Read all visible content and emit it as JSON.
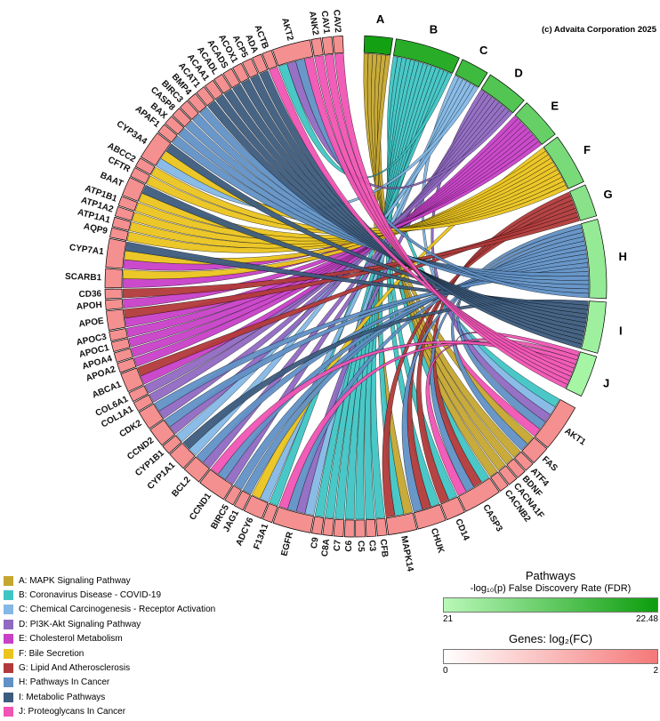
{
  "copyright": "(c) Advaita Corporation 2025",
  "chart_data": {
    "type": "chord",
    "title": "Pathways-Genes chord diagram",
    "gene_arc_color": "#F59090",
    "pathways": [
      {
        "letter": "A",
        "name": "MAPK Signaling Pathway",
        "color": "#C5A730",
        "arc_color": "#13A013"
      },
      {
        "letter": "B",
        "name": "Coronavirus Disease - COVID-19",
        "color": "#40C5C5",
        "arc_color": "#29AD29"
      },
      {
        "letter": "C",
        "name": "Chemical Carcinogenesis - Receptor Activation",
        "color": "#84B8E6",
        "arc_color": "#3EBA3E"
      },
      {
        "letter": "D",
        "name": "PI3K-Akt Signaling Pathway",
        "color": "#9069C2",
        "arc_color": "#53C553"
      },
      {
        "letter": "E",
        "name": "Cholesterol Metabolism",
        "color": "#C840C8",
        "arc_color": "#66D066"
      },
      {
        "letter": "F",
        "name": "Bile Secretion",
        "color": "#EBC41E",
        "arc_color": "#79DA79"
      },
      {
        "letter": "G",
        "name": "Lipid And Atherosclerosis",
        "color": "#B23A3A",
        "arc_color": "#89E289"
      },
      {
        "letter": "H",
        "name": "Pathways In Cancer",
        "color": "#6191C6",
        "arc_color": "#95EA95"
      },
      {
        "letter": "I",
        "name": "Metabolic Pathways",
        "color": "#3D5C7E",
        "arc_color": "#9EF09E"
      },
      {
        "letter": "J",
        "name": "Proteoglycans In Cancer",
        "color": "#F054B4",
        "arc_color": "#A5F5A5"
      }
    ],
    "genes": [
      {
        "name": "AKT1",
        "links": [
          "B",
          "C",
          "D",
          "H",
          "J"
        ]
      },
      {
        "name": "FAS",
        "links": [
          "A",
          "H"
        ]
      },
      {
        "name": "ATF4",
        "links": [
          "A"
        ]
      },
      {
        "name": "BDNF",
        "links": [
          "A"
        ]
      },
      {
        "name": "CACNA1F",
        "links": [
          "A"
        ]
      },
      {
        "name": "CACNB2",
        "links": [
          "A"
        ]
      },
      {
        "name": "CASP3",
        "links": [
          "B",
          "G",
          "H",
          "J"
        ]
      },
      {
        "name": "CD14",
        "links": [
          "B",
          "G"
        ]
      },
      {
        "name": "CHUK",
        "links": [
          "B",
          "G",
          "H"
        ]
      },
      {
        "name": "MAPK14",
        "links": [
          "A",
          "B",
          "G"
        ]
      },
      {
        "name": "CFB",
        "links": [
          "B"
        ]
      },
      {
        "name": "C3",
        "links": [
          "B"
        ]
      },
      {
        "name": "C5",
        "links": [
          "B"
        ]
      },
      {
        "name": "C6",
        "links": [
          "B"
        ]
      },
      {
        "name": "C7",
        "links": [
          "B"
        ]
      },
      {
        "name": "C8A",
        "links": [
          "B"
        ]
      },
      {
        "name": "C9",
        "links": [
          "B"
        ]
      },
      {
        "name": "EGFR",
        "links": [
          "C",
          "D",
          "H",
          "J"
        ]
      },
      {
        "name": "F13A1",
        "links": [
          "B"
        ]
      },
      {
        "name": "ADCY6",
        "links": [
          "C",
          "F"
        ]
      },
      {
        "name": "JAG1",
        "links": [
          "H"
        ]
      },
      {
        "name": "BIRC5",
        "links": [
          "H"
        ]
      },
      {
        "name": "CCND1",
        "links": [
          "D",
          "H",
          "J"
        ]
      },
      {
        "name": "BCL2",
        "links": [
          "D",
          "H"
        ]
      },
      {
        "name": "CYP1A1",
        "links": [
          "C",
          "I"
        ]
      },
      {
        "name": "CYP1B1",
        "links": [
          "C"
        ]
      },
      {
        "name": "CCND2",
        "links": [
          "D",
          "H"
        ]
      },
      {
        "name": "CDK2",
        "links": [
          "D",
          "H"
        ]
      },
      {
        "name": "COL1A1",
        "links": [
          "D"
        ]
      },
      {
        "name": "COL6A1",
        "links": [
          "D"
        ]
      },
      {
        "name": "ABCA1",
        "links": [
          "E",
          "G"
        ]
      },
      {
        "name": "APOA2",
        "links": [
          "E"
        ]
      },
      {
        "name": "APOA4",
        "links": [
          "E"
        ]
      },
      {
        "name": "APOC1",
        "links": [
          "E"
        ]
      },
      {
        "name": "APOC3",
        "links": [
          "E"
        ]
      },
      {
        "name": "APOE",
        "links": [
          "E",
          "G"
        ]
      },
      {
        "name": "APOH",
        "links": [
          "E"
        ]
      },
      {
        "name": "CD36",
        "links": [
          "G"
        ]
      },
      {
        "name": "SCARB1",
        "links": [
          "E",
          "F"
        ]
      },
      {
        "name": "CYP7A1",
        "links": [
          "E",
          "F",
          "I"
        ]
      },
      {
        "name": "AQP9",
        "links": [
          "F"
        ]
      },
      {
        "name": "ATP1A1",
        "links": [
          "F"
        ]
      },
      {
        "name": "ATP1A2",
        "links": [
          "F"
        ]
      },
      {
        "name": "ATP1B1",
        "links": [
          "F"
        ]
      },
      {
        "name": "BAAT",
        "links": [
          "F",
          "I"
        ]
      },
      {
        "name": "CFTR",
        "links": [
          "F"
        ]
      },
      {
        "name": "ABCC2",
        "links": [
          "F"
        ]
      },
      {
        "name": "CYP3A4",
        "links": [
          "C",
          "F",
          "I"
        ]
      },
      {
        "name": "APAF1",
        "links": [
          "H"
        ]
      },
      {
        "name": "BAX",
        "links": [
          "H"
        ]
      },
      {
        "name": "CASP8",
        "links": [
          "H"
        ]
      },
      {
        "name": "BIRC3",
        "links": [
          "H"
        ]
      },
      {
        "name": "BMP4",
        "links": [
          "H"
        ]
      },
      {
        "name": "ACAT1",
        "links": [
          "I"
        ]
      },
      {
        "name": "ACAA1",
        "links": [
          "I"
        ]
      },
      {
        "name": "ACADL",
        "links": [
          "I"
        ]
      },
      {
        "name": "ACADS",
        "links": [
          "I"
        ]
      },
      {
        "name": "ACOX1",
        "links": [
          "I"
        ]
      },
      {
        "name": "ACP5",
        "links": [
          "I"
        ]
      },
      {
        "name": "ADA",
        "links": [
          "I"
        ]
      },
      {
        "name": "ACTB",
        "links": [
          "J"
        ]
      },
      {
        "name": "AKT2",
        "links": [
          "B",
          "D",
          "H",
          "J"
        ]
      },
      {
        "name": "ANK2",
        "links": [
          "J"
        ]
      },
      {
        "name": "CAV1",
        "links": [
          "J"
        ]
      },
      {
        "name": "CAV2",
        "links": [
          "J"
        ]
      }
    ],
    "legend_fdr": {
      "title": "Pathways",
      "subtitle": "-log₁₀(p) False Discovery Rate (FDR)",
      "min": "21",
      "max": "22.48",
      "min_color": "#B9F8B9",
      "max_color": "#0D9D0D"
    },
    "legend_fc": {
      "title": "Genes: log₂(FC)",
      "min": "0",
      "max": "2",
      "min_color": "#FFFFFF",
      "max_color": "#F57878"
    }
  }
}
